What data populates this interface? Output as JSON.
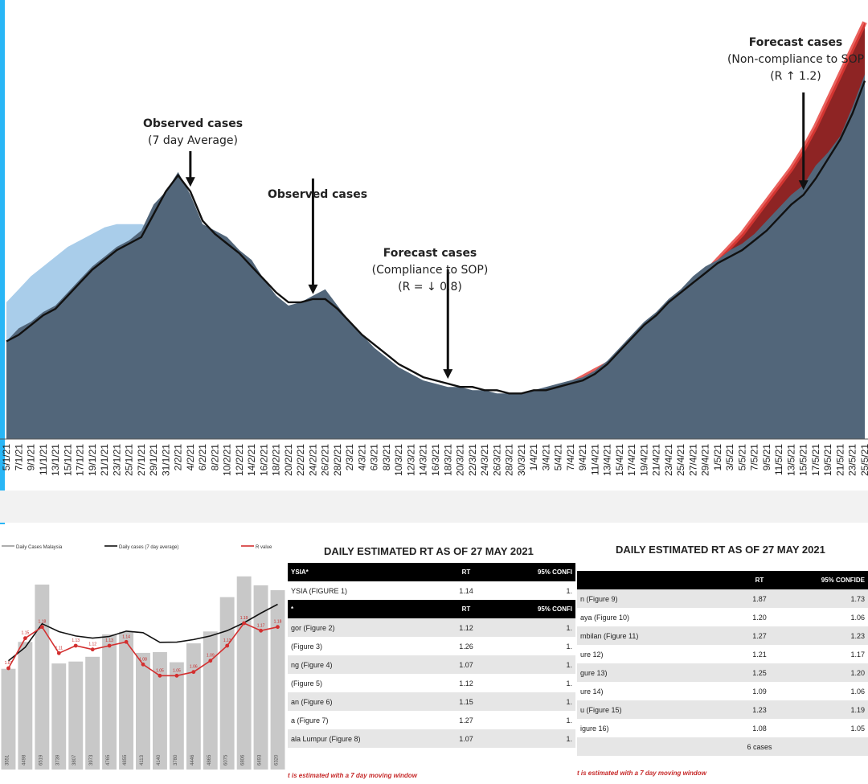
{
  "chart_data": [
    {
      "type": "area",
      "x_tick_labels": [
        "5/1/21",
        "7/1/21",
        "9/1/21",
        "11/1/21",
        "13/1/21",
        "15/1/21",
        "17/1/21",
        "19/1/21",
        "21/1/21",
        "23/1/21",
        "25/1/21",
        "27/1/21",
        "29/1/21",
        "31/1/21",
        "2/2/21",
        "4/2/21",
        "6/2/21",
        "8/2/21",
        "10/2/21",
        "12/2/21",
        "14/2/21",
        "16/2/21",
        "18/2/21",
        "20/2/21",
        "22/2/21",
        "24/2/21",
        "26/2/21",
        "28/2/21",
        "2/3/21",
        "4/3/21",
        "6/3/21",
        "8/3/21",
        "10/3/21",
        "12/3/21",
        "14/3/21",
        "16/3/21",
        "18/3/21",
        "20/3/21",
        "22/3/21",
        "24/3/21",
        "26/3/21",
        "28/3/21",
        "30/3/21",
        "1/4/21",
        "3/4/21",
        "5/4/21",
        "7/4/21",
        "9/4/21",
        "11/4/21",
        "13/4/21",
        "15/4/21",
        "17/4/21",
        "19/4/21",
        "21/4/21",
        "23/4/21",
        "25/4/21",
        "27/4/21",
        "29/4/21",
        "1/5/21",
        "3/5/21",
        "5/5/21",
        "7/5/21",
        "9/5/21",
        "11/5/21",
        "13/5/21",
        "15/5/21",
        "17/5/21",
        "19/5/21",
        "21/5/21",
        "23/5/21",
        "25/5/21"
      ],
      "series": [
        {
          "name": "Observed cases",
          "values": [
            3,
            3.4,
            3.6,
            3.9,
            4.1,
            4.5,
            4.9,
            5.3,
            5.6,
            5.9,
            6.1,
            6.4,
            7.2,
            7.6,
            8.2,
            7.5,
            6.6,
            6.4,
            6.2,
            5.8,
            5.5,
            4.9,
            4.4,
            4.1,
            4.2,
            4.4,
            4.6,
            4.1,
            3.6,
            3.2,
            2.8,
            2.5,
            2.2,
            2.0,
            1.8,
            1.7,
            1.6,
            1.6,
            1.5,
            1.5,
            1.4,
            1.4,
            1.4,
            1.5,
            1.6,
            1.7,
            1.8,
            1.9,
            2.1,
            2.4,
            2.8,
            3.2,
            3.6,
            3.9,
            4.3,
            4.6,
            5.0,
            5.3,
            5.5,
            5.8,
            6.0,
            6.3,
            6.7,
            7.1,
            7.5,
            7.8,
            8.4,
            8.8,
            9.3,
            10.2,
            11.2
          ]
        },
        {
          "name": "Observed cases (7 day Average)",
          "values": [
            3.0,
            3.2,
            3.5,
            3.8,
            4.0,
            4.4,
            4.8,
            5.2,
            5.5,
            5.8,
            6.0,
            6.2,
            6.9,
            7.6,
            8.1,
            7.6,
            6.7,
            6.3,
            6.0,
            5.7,
            5.3,
            4.9,
            4.5,
            4.2,
            4.2,
            4.3,
            4.3,
            4.0,
            3.6,
            3.2,
            2.9,
            2.6,
            2.3,
            2.1,
            1.9,
            1.8,
            1.7,
            1.6,
            1.6,
            1.5,
            1.5,
            1.4,
            1.4,
            1.5,
            1.5,
            1.6,
            1.7,
            1.8,
            2.0,
            2.3,
            2.7,
            3.1,
            3.5,
            3.8,
            4.2,
            4.5,
            4.8,
            5.1,
            5.4,
            5.6,
            5.8,
            6.1,
            6.4,
            6.8,
            7.2,
            7.5,
            8.0,
            8.6,
            9.2,
            10.0,
            11.0
          ]
        }
      ],
      "bands": [
        {
          "name": "Forecast cases (Compliance to SOP)",
          "values": [
            4.2,
            4.6,
            5.0,
            5.3,
            5.6,
            5.9,
            6.1,
            6.3,
            6.5,
            6.6,
            6.6,
            6.6,
            6.5,
            6.4,
            6.2,
            6.0,
            5.8,
            5.5,
            5.2,
            4.9,
            4.6,
            4.3,
            4.0,
            3.7,
            3.4,
            3.2,
            2.9,
            2.7,
            2.5,
            2.3,
            2.1,
            2.0,
            1.8,
            1.7,
            1.6,
            1.5,
            1.4,
            1.3,
            1.2,
            1.1,
            1.0,
            0.95,
            0.9,
            0.85,
            0.8,
            0.75,
            0.7,
            0.65,
            0.6,
            0.56,
            0.52,
            0.48,
            0.45,
            0.42,
            0.39,
            0.36,
            0.34,
            0.32,
            0.3,
            0.28,
            0.26,
            0.24,
            0.22,
            0.2,
            0.18,
            0.16,
            0.14,
            0.12,
            0.1,
            0.08,
            0.06
          ]
        },
        {
          "name": "Forecast cases (Non-compliance to SOP)",
          "values": [
            1.4,
            1.5,
            1.6,
            1.7,
            1.9,
            2.1,
            2.3,
            2.6,
            2.9,
            3.2,
            3.5,
            3.9,
            4.3,
            4.7,
            5.1,
            5.5,
            5.9,
            6.3,
            6.8,
            7.3,
            7.8,
            8.3,
            8.9,
            9.6,
            10.4,
            11.2,
            12.0,
            12.8
          ]
        }
      ],
      "annotations": [
        {
          "title": "Observed cases",
          "sub": "(7 day Average)"
        },
        {
          "title": "Observed cases"
        },
        {
          "title": "Forecast cases",
          "sub": "(Compliance to SOP)",
          "sub2": "(R = ↓ 0.8)"
        },
        {
          "title": "Forecast cases",
          "sub": "(Non-compliance to SOP",
          "sub2": "(R ↑ 1.2)"
        }
      ]
    },
    {
      "type": "bar",
      "legend": [
        "Daily Cases Malaysia",
        "Daily cases (7 day average)",
        "R value"
      ],
      "values": [
        3551,
        4498,
        6519,
        3739,
        3807,
        3973,
        4765,
        4855,
        4113,
        4140,
        3780,
        4446,
        4865,
        6075,
        6806,
        6493,
        6320
      ],
      "rt_labels": [
        "1.07",
        "1.15",
        "1.18",
        "1.11",
        "1.13",
        "1.12",
        "1.13",
        "1.14",
        "1.08",
        "1.05",
        "1.05",
        "1.06",
        "1.09",
        "1.13",
        "1.19",
        "1.17",
        "1.18"
      ]
    },
    {
      "type": "table",
      "title": "DAILY ESTIMATED RT AS OF 27 MAY 2021",
      "header1": [
        "YSIA*",
        "RT",
        "95% CONFI"
      ],
      "row1": [
        "YSIA (FIGURE 1)",
        "1.14",
        "1."
      ],
      "header2": [
        "*",
        "RT",
        "95% CONFI"
      ],
      "rows": [
        [
          "gor (Figure 2)",
          "1.12",
          "1."
        ],
        [
          "(Figure 3)",
          "1.26",
          "1."
        ],
        [
          "ng (Figure 4)",
          "1.07",
          "1."
        ],
        [
          "(Figure 5)",
          "1.12",
          "1."
        ],
        [
          "an (Figure 6)",
          "1.15",
          "1."
        ],
        [
          "a (Figure 7)",
          "1.27",
          "1."
        ],
        [
          "ala Lumpur (Figure 8)",
          "1.07",
          "1."
        ]
      ],
      "note": "t is estimated with a 7 day moving window"
    },
    {
      "type": "table",
      "title": "DAILY ESTIMATED RT AS OF 27 MAY 2021",
      "header": [
        "",
        "RT",
        "95% CONFIDE"
      ],
      "rows": [
        [
          "n (Figure 9)",
          "1.87",
          "1.73"
        ],
        [
          "aya (Figure 10)",
          "1.20",
          "1.06"
        ],
        [
          "mbilan (Figure 11)",
          "1.27",
          "1.23"
        ],
        [
          "ure 12)",
          "1.21",
          "1.17"
        ],
        [
          "gure 13)",
          "1.25",
          "1.20"
        ],
        [
          "ure 14)",
          "1.09",
          "1.06"
        ],
        [
          "u (Figure 15)",
          "1.23",
          "1.19"
        ],
        [
          "igure 16)",
          "1.08",
          "1.05"
        ],
        [
          "",
          "6 cases",
          ""
        ]
      ],
      "note": "t is estimated with a 7 day moving window"
    }
  ]
}
